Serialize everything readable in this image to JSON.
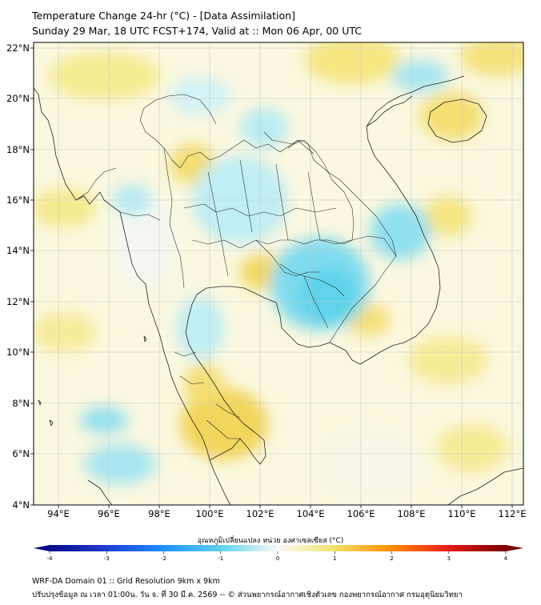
{
  "title_line1": "Temperature Change 24-hr (°C) - [Data Assimilation]",
  "title_line2": "Sunday 29 Mar, 18 UTC FCST+174, Valid at :: Mon 06 Apr, 00 UTC",
  "lat_ticks": [
    "22°N",
    "20°N",
    "18°N",
    "16°N",
    "14°N",
    "12°N",
    "10°N",
    "8°N",
    "6°N",
    "4°N"
  ],
  "lon_ticks": [
    "94°E",
    "96°E",
    "98°E",
    "100°E",
    "102°E",
    "104°E",
    "106°E",
    "108°E",
    "110°E",
    "112°E"
  ],
  "map_extent": {
    "lon": [
      93,
      112.5
    ],
    "lat": [
      4,
      22.2
    ]
  },
  "colorbar": {
    "title": "อุณหภูมิเปลี่ยนแปลง หน่วย องศาเซลเซียส (°C)",
    "range": [
      -4,
      4
    ],
    "tick_labels": [
      "-4",
      "-3",
      "-2",
      "-1",
      "0",
      "1",
      "2",
      "3",
      "4"
    ]
  },
  "colors": {
    "cold_dark": "#0a0a8c",
    "cold": "#1e90ff",
    "cool": "#5fd3ea",
    "neutral": "#f8fbf8",
    "warm": "#f3e36a",
    "hot": "#ff8c00",
    "very_hot": "#7a0000",
    "coast": "#222222"
  },
  "footer_line1": "WRF-DA Domain 01 :: Grid Resolution 9km x 9km",
  "footer_line2": "ปรับปรุงข้อมูล ณ เวลา 01:00น. วัน จ. ที่ 30 มี.ค. 2569 -- © ส่วนพยากรณ์อากาศเชิงตัวเลข กองพยากรณ์อากาศ กรมอุตุนิยมวิทยา"
}
